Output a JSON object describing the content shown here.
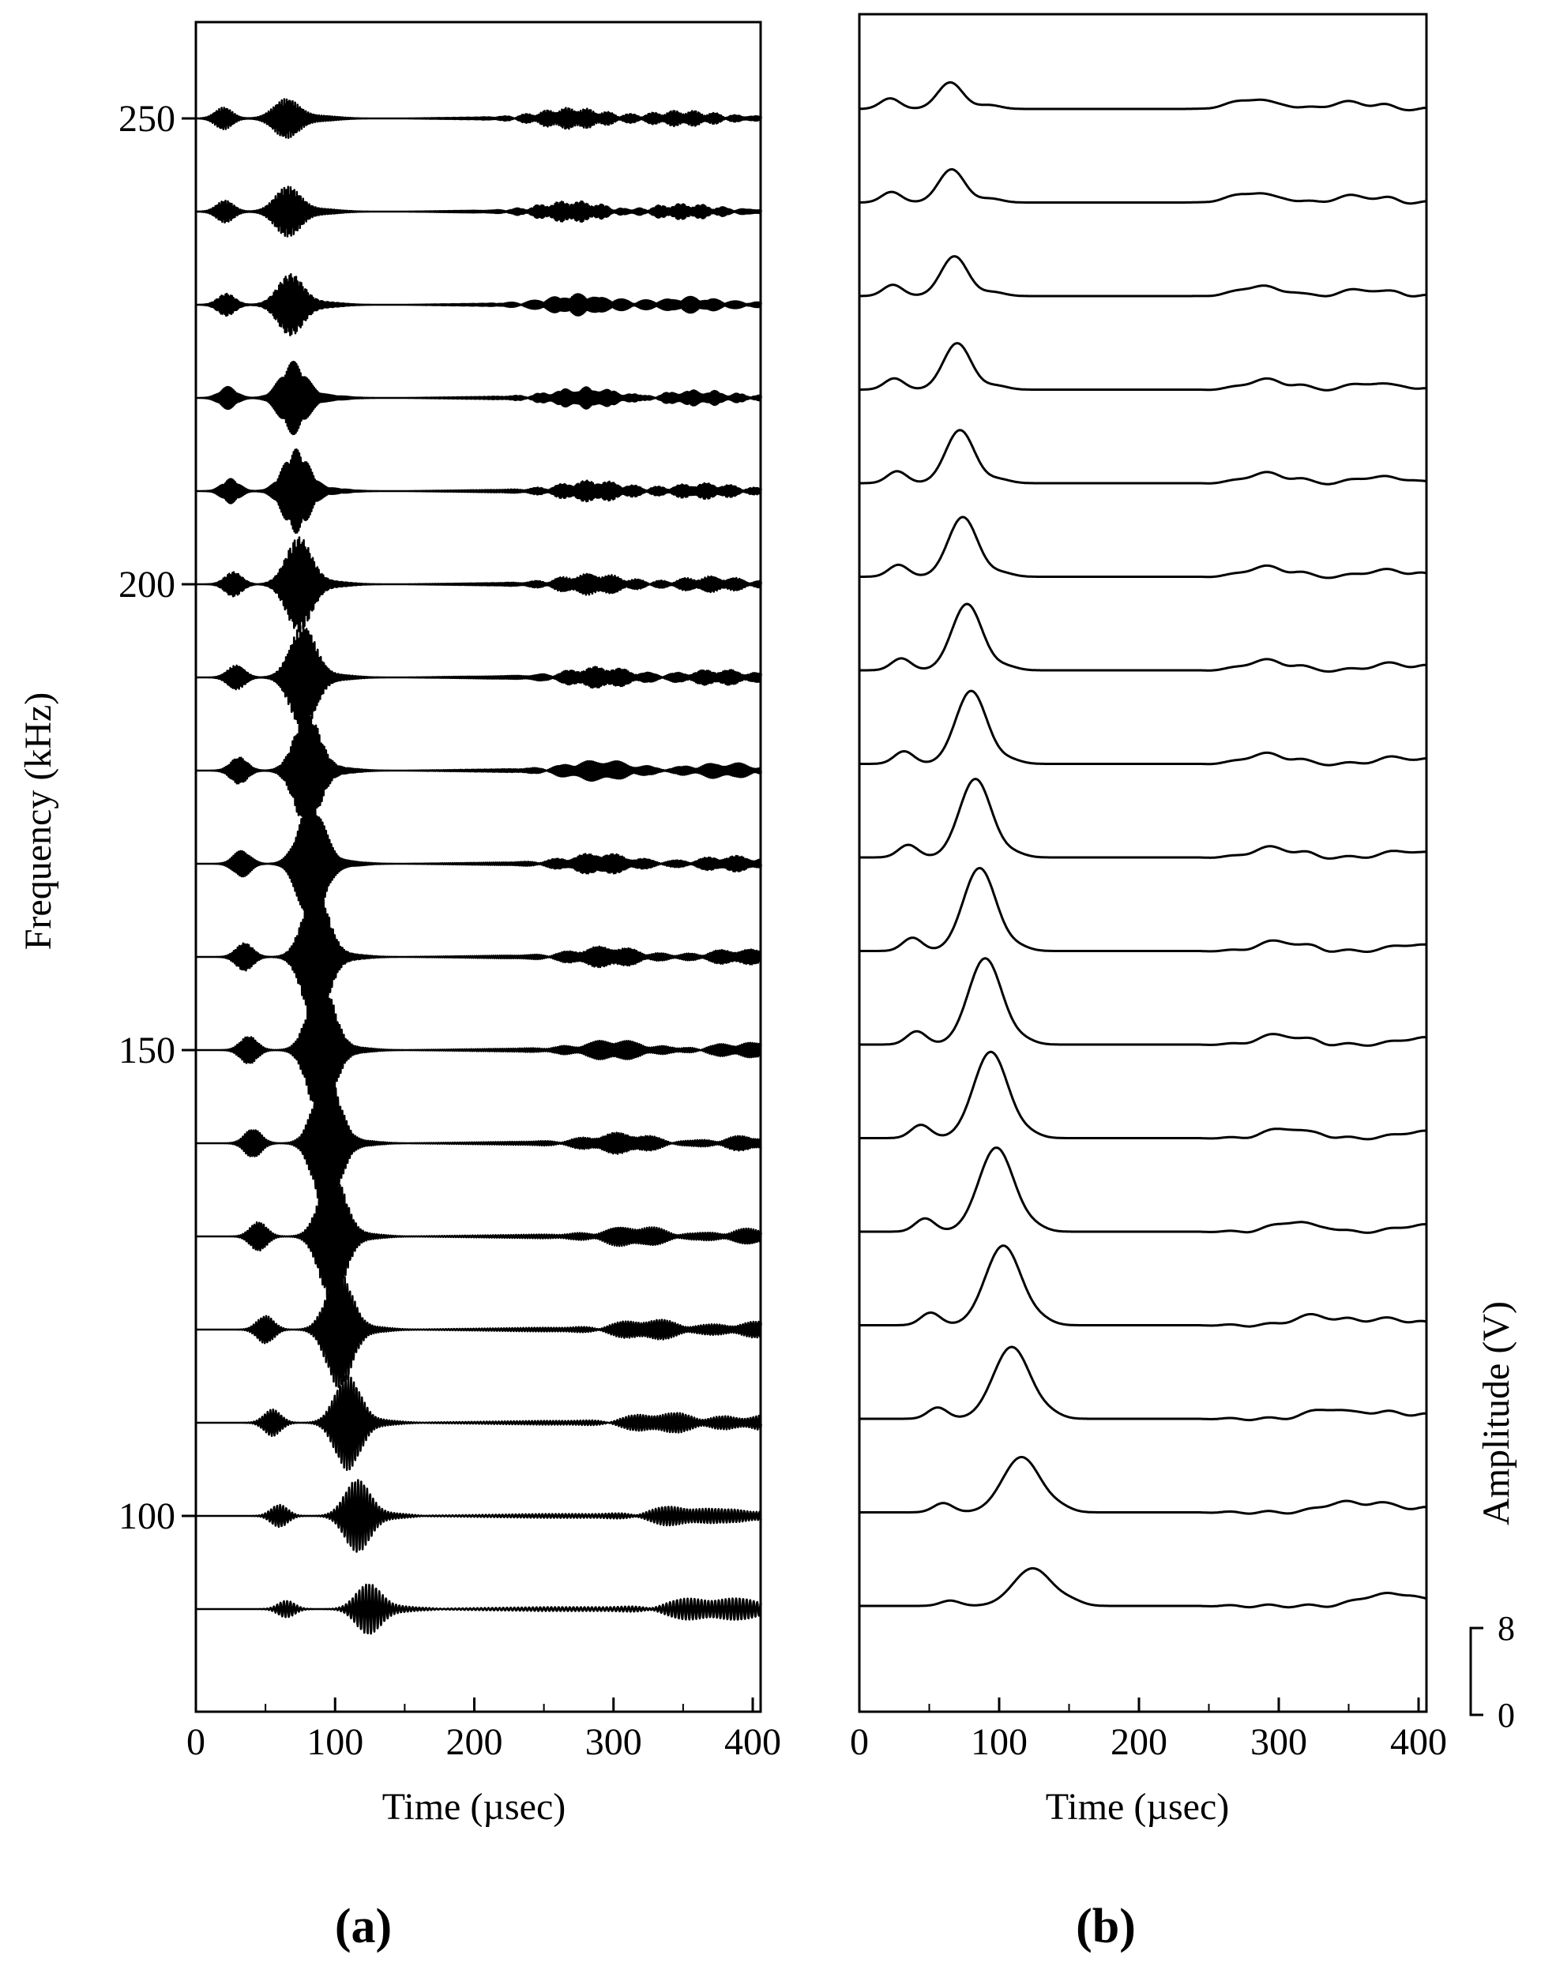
{
  "chart_data": [
    {
      "panel": "a",
      "type": "line",
      "panel_label": "(a)",
      "title": "",
      "xlabel": "Time (µsec)",
      "ylabel": "Frequency (kHz)",
      "xlim": [
        0,
        400
      ],
      "ylim": [
        80,
        260
      ],
      "x_ticks": [
        0,
        100,
        200,
        300,
        400
      ],
      "x_tick_labels": [
        "0",
        "100",
        "200",
        "300",
        "400"
      ],
      "y_ticks": [
        100,
        150,
        200,
        250
      ],
      "y_tick_labels": [
        "100",
        "150",
        "200",
        "250"
      ],
      "trace_frequencies_khz": [
        250,
        240,
        230,
        220,
        210,
        200,
        190,
        180,
        170,
        160,
        150,
        140,
        130,
        120,
        110,
        100,
        90
      ],
      "series": [
        {
          "name": "250 kHz",
          "frequency": 250,
          "main_arrival": 65,
          "main_amplitude": 3.5,
          "early_arrival": 20,
          "early_amplitude": 2.0,
          "late_arrivals": [
            270,
            350
          ]
        },
        {
          "name": "240 kHz",
          "frequency": 240,
          "main_arrival": 66,
          "main_amplitude": 4.5,
          "early_arrival": 21,
          "early_amplitude": 2.0,
          "late_arrivals": [
            270,
            350
          ]
        },
        {
          "name": "230 kHz",
          "frequency": 230,
          "main_arrival": 68,
          "main_amplitude": 5.5,
          "early_arrival": 22,
          "early_amplitude": 2.0,
          "late_arrivals": [
            275,
            355
          ]
        },
        {
          "name": "220 kHz",
          "frequency": 220,
          "main_arrival": 70,
          "main_amplitude": 6.5,
          "early_arrival": 23,
          "early_amplitude": 2.0,
          "late_arrivals": [
            280,
            360
          ]
        },
        {
          "name": "210 kHz",
          "frequency": 210,
          "main_arrival": 72,
          "main_amplitude": 7.5,
          "early_arrival": 25,
          "early_amplitude": 2.2,
          "late_arrivals": [
            285,
            365
          ]
        },
        {
          "name": "200 kHz",
          "frequency": 200,
          "main_arrival": 74,
          "main_amplitude": 8.5,
          "early_arrival": 27,
          "early_amplitude": 2.2,
          "late_arrivals": [
            285,
            370
          ]
        },
        {
          "name": "190 kHz",
          "frequency": 190,
          "main_arrival": 77,
          "main_amplitude": 9.5,
          "early_arrival": 29,
          "early_amplitude": 2.2,
          "late_arrivals": [
            290,
            375
          ]
        },
        {
          "name": "180 kHz",
          "frequency": 180,
          "main_arrival": 80,
          "main_amplitude": 10.5,
          "early_arrival": 31,
          "early_amplitude": 2.4,
          "late_arrivals": [
            290,
            380
          ]
        },
        {
          "name": "170 kHz",
          "frequency": 170,
          "main_arrival": 83,
          "main_amplitude": 11.5,
          "early_arrival": 33,
          "early_amplitude": 2.4,
          "late_arrivals": [
            290,
            385
          ]
        },
        {
          "name": "160 kHz",
          "frequency": 160,
          "main_arrival": 86,
          "main_amplitude": 12.5,
          "early_arrival": 35,
          "early_amplitude": 2.5,
          "late_arrivals": [
            295,
            390
          ]
        },
        {
          "name": "150 kHz",
          "frequency": 150,
          "main_arrival": 90,
          "main_amplitude": 13.0,
          "early_arrival": 38,
          "early_amplitude": 2.5,
          "late_arrivals": [
            300,
            395
          ]
        },
        {
          "name": "140 kHz",
          "frequency": 140,
          "main_arrival": 94,
          "main_amplitude": 13.0,
          "early_arrival": 41,
          "early_amplitude": 2.6,
          "late_arrivals": [
            305,
            400
          ]
        },
        {
          "name": "130 kHz",
          "frequency": 130,
          "main_arrival": 98,
          "main_amplitude": 12.0,
          "early_arrival": 45,
          "early_amplitude": 2.6,
          "late_arrivals": [
            315,
            400
          ]
        },
        {
          "name": "120 kHz",
          "frequency": 120,
          "main_arrival": 103,
          "main_amplitude": 10.5,
          "early_arrival": 50,
          "early_amplitude": 2.5,
          "late_arrivals": [
            325,
            400
          ]
        },
        {
          "name": "110 kHz",
          "frequency": 110,
          "main_arrival": 109,
          "main_amplitude": 8.5,
          "early_arrival": 55,
          "early_amplitude": 2.4,
          "late_arrivals": [
            335,
            400
          ]
        },
        {
          "name": "100 kHz",
          "frequency": 100,
          "main_arrival": 116,
          "main_amplitude": 6.5,
          "early_arrival": 60,
          "early_amplitude": 2.0,
          "late_arrivals": [
            350,
            400
          ]
        },
        {
          "name": "90 kHz",
          "frequency": 90,
          "main_arrival": 124,
          "main_amplitude": 4.5,
          "early_arrival": 65,
          "early_amplitude": 1.5,
          "late_arrivals": [
            360,
            400
          ]
        }
      ]
    },
    {
      "panel": "b",
      "type": "line",
      "panel_label": "(b)",
      "title": "",
      "xlabel": "Time (µsec)",
      "ylabel": "Amplitude (V)",
      "xlim": [
        0,
        400
      ],
      "x_ticks": [
        0,
        100,
        200,
        300,
        400
      ],
      "x_tick_labels": [
        "0",
        "100",
        "200",
        "300",
        "400"
      ],
      "amplitude_scale_bar": {
        "min": 0,
        "max": 8,
        "min_label": "0",
        "max_label": "8"
      },
      "series": [
        {
          "name": "250 kHz envelope",
          "frequency": 250,
          "main_arrival": 65,
          "main_amplitude": 2.4,
          "early_arrival": 22,
          "early_amplitude": 1.6,
          "late_arrivals": [
            280,
            350
          ]
        },
        {
          "name": "240 kHz envelope",
          "frequency": 240,
          "main_arrival": 66,
          "main_amplitude": 3.0,
          "early_arrival": 23,
          "early_amplitude": 1.6,
          "late_arrivals": [
            280,
            355
          ]
        },
        {
          "name": "230 kHz envelope",
          "frequency": 230,
          "main_arrival": 68,
          "main_amplitude": 3.6,
          "early_arrival": 24,
          "early_amplitude": 1.7,
          "late_arrivals": [
            285,
            360
          ]
        },
        {
          "name": "220 kHz envelope",
          "frequency": 220,
          "main_arrival": 70,
          "main_amplitude": 4.2,
          "early_arrival": 25,
          "early_amplitude": 1.7,
          "late_arrivals": [
            290,
            365
          ]
        },
        {
          "name": "210 kHz envelope",
          "frequency": 210,
          "main_arrival": 72,
          "main_amplitude": 4.8,
          "early_arrival": 27,
          "early_amplitude": 1.8,
          "late_arrivals": [
            290,
            370
          ]
        },
        {
          "name": "200 kHz envelope",
          "frequency": 200,
          "main_arrival": 74,
          "main_amplitude": 5.4,
          "early_arrival": 28,
          "early_amplitude": 1.8,
          "late_arrivals": [
            290,
            375
          ]
        },
        {
          "name": "190 kHz envelope",
          "frequency": 190,
          "main_arrival": 77,
          "main_amplitude": 6.0,
          "early_arrival": 30,
          "early_amplitude": 1.8,
          "late_arrivals": [
            290,
            380
          ]
        },
        {
          "name": "180 kHz envelope",
          "frequency": 180,
          "main_arrival": 80,
          "main_amplitude": 6.6,
          "early_arrival": 32,
          "early_amplitude": 1.9,
          "late_arrivals": [
            290,
            385
          ]
        },
        {
          "name": "170 kHz envelope",
          "frequency": 170,
          "main_arrival": 83,
          "main_amplitude": 7.1,
          "early_arrival": 35,
          "early_amplitude": 1.9,
          "late_arrivals": [
            295,
            390
          ]
        },
        {
          "name": "160 kHz envelope",
          "frequency": 160,
          "main_arrival": 86,
          "main_amplitude": 7.5,
          "early_arrival": 38,
          "early_amplitude": 2.0,
          "late_arrivals": [
            300,
            395
          ]
        },
        {
          "name": "150 kHz envelope",
          "frequency": 150,
          "main_arrival": 90,
          "main_amplitude": 7.8,
          "early_arrival": 41,
          "early_amplitude": 2.0,
          "late_arrivals": [
            300,
            400
          ]
        },
        {
          "name": "140 kHz envelope",
          "frequency": 140,
          "main_arrival": 94,
          "main_amplitude": 7.8,
          "early_arrival": 44,
          "early_amplitude": 2.0,
          "late_arrivals": [
            305,
            400
          ]
        },
        {
          "name": "130 kHz envelope",
          "frequency": 130,
          "main_arrival": 98,
          "main_amplitude": 7.6,
          "early_arrival": 47,
          "early_amplitude": 2.0,
          "late_arrivals": [
            310,
            400
          ]
        },
        {
          "name": "120 kHz envelope",
          "frequency": 120,
          "main_arrival": 103,
          "main_amplitude": 7.2,
          "early_arrival": 51,
          "early_amplitude": 1.9,
          "late_arrivals": [
            325,
            375
          ]
        },
        {
          "name": "110 kHz envelope",
          "frequency": 110,
          "main_arrival": 109,
          "main_amplitude": 6.5,
          "early_arrival": 56,
          "early_amplitude": 1.7,
          "late_arrivals": [
            335,
            380
          ]
        },
        {
          "name": "100 kHz envelope",
          "frequency": 100,
          "main_arrival": 116,
          "main_amplitude": 5.0,
          "early_arrival": 60,
          "early_amplitude": 1.4,
          "late_arrivals": [
            345,
            380
          ]
        },
        {
          "name": "90 kHz envelope",
          "frequency": 90,
          "main_arrival": 124,
          "main_amplitude": 3.4,
          "early_arrival": 65,
          "early_amplitude": 0.8,
          "late_arrivals": [
            370,
            395
          ]
        }
      ]
    }
  ]
}
